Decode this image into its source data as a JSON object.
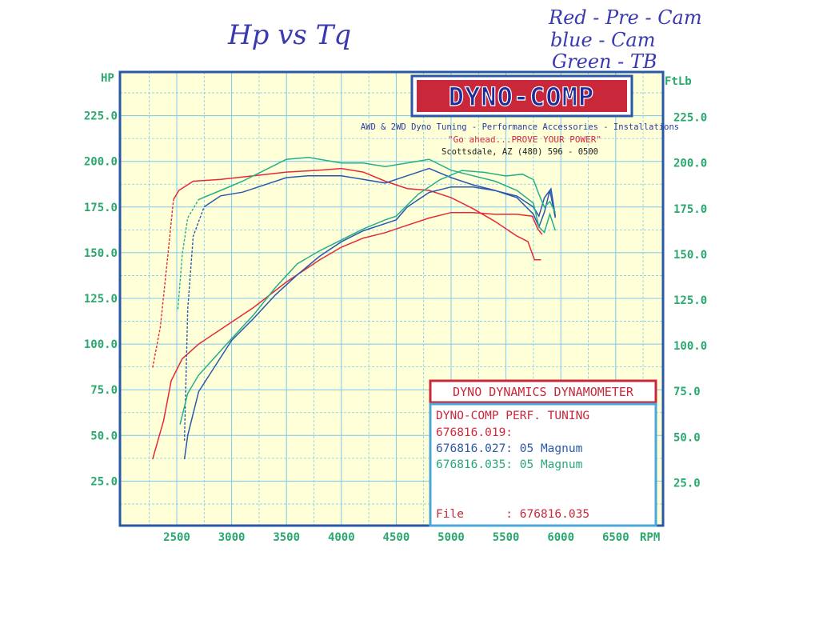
{
  "annotations": {
    "title": "Hp vs Tq",
    "legend_lines": [
      "Red - Pre - Cam",
      "blue - Cam",
      "Green - TB"
    ]
  },
  "logo": {
    "text": "DYNO-COMP",
    "tagline": "AWD & 2WD Dyno Tuning - Performance Accessories - Installations",
    "slogan": "\"Go ahead...PROVE YOUR POWER\"",
    "address": "Scottsdale, AZ (480) 596 - 0500"
  },
  "infobox": {
    "header": "DYNO DYNAMICS DYNAMOMETER",
    "company": "DYNO-COMP PERF. TUNING",
    "runs": [
      {
        "label": "676816.019:",
        "color": "#d8283a"
      },
      {
        "label": "676816.027: 05 Magnum",
        "color": "#2a5aa8"
      },
      {
        "label": "676816.035: 05 Magnum",
        "color": "#27a87a"
      }
    ],
    "file_label": "File      : 676816.035"
  },
  "colors": {
    "red": "#e8283a",
    "blue": "#2a58b0",
    "green": "#22b08a",
    "grid": "#7cc8f0",
    "plot_bg": "#ffffd8",
    "frame": "#2a58a8",
    "tick_text": "#2aa86e"
  },
  "chart_data": {
    "type": "line",
    "xlabel": "RPM",
    "ylabel_left": "HP",
    "ylabel_right": "FtLb",
    "x_ticks": [
      2500,
      3000,
      3500,
      4000,
      4500,
      5000,
      5500,
      6000,
      6500
    ],
    "y_left_ticks": [
      "25.0",
      "50.0",
      "75.0",
      "100.0",
      "125.0",
      "150.0",
      "175.0",
      "200.0",
      "225.0"
    ],
    "y_right_ticks": [
      "25.0",
      "50.0",
      "75.0",
      "100.0",
      "125.0",
      "150.0",
      "175.0",
      "200.0",
      "225.0"
    ],
    "series": [
      {
        "name": "676816.019",
        "color_key": "red",
        "hp": [
          [
            2280,
            37
          ],
          [
            2380,
            58
          ],
          [
            2450,
            80
          ],
          [
            2550,
            92
          ],
          [
            2700,
            100
          ],
          [
            2900,
            108
          ],
          [
            3200,
            120
          ],
          [
            3500,
            134
          ],
          [
            3800,
            146
          ],
          [
            4000,
            153
          ],
          [
            4200,
            158
          ],
          [
            4400,
            161
          ],
          [
            4600,
            165
          ],
          [
            4800,
            169
          ],
          [
            5000,
            172
          ],
          [
            5200,
            172
          ],
          [
            5400,
            171
          ],
          [
            5600,
            171
          ],
          [
            5740,
            170
          ],
          [
            5790,
            163
          ],
          [
            5830,
            160
          ]
        ],
        "torque": [
          [
            2280,
            88
          ],
          [
            2350,
            110
          ],
          [
            2420,
            150
          ],
          [
            2470,
            180
          ],
          [
            2520,
            185
          ],
          [
            2650,
            190
          ],
          [
            2900,
            191
          ],
          [
            3200,
            193
          ],
          [
            3500,
            195
          ],
          [
            3800,
            196
          ],
          [
            4000,
            197
          ],
          [
            4200,
            195
          ],
          [
            4400,
            190
          ],
          [
            4600,
            186
          ],
          [
            4800,
            185
          ],
          [
            5000,
            181
          ],
          [
            5200,
            175
          ],
          [
            5400,
            168
          ],
          [
            5600,
            160
          ],
          [
            5700,
            157
          ],
          [
            5760,
            147
          ],
          [
            5820,
            147
          ]
        ]
      },
      {
        "name": "676816.027: 05 Magnum",
        "color_key": "blue",
        "hp": [
          [
            2570,
            37
          ],
          [
            2600,
            50
          ],
          [
            2700,
            74
          ],
          [
            2850,
            88
          ],
          [
            3000,
            102
          ],
          [
            3200,
            114
          ],
          [
            3400,
            127
          ],
          [
            3600,
            138
          ],
          [
            3800,
            148
          ],
          [
            4000,
            156
          ],
          [
            4200,
            162
          ],
          [
            4400,
            166
          ],
          [
            4500,
            168
          ],
          [
            4600,
            175
          ],
          [
            4800,
            183
          ],
          [
            5000,
            186
          ],
          [
            5200,
            186
          ],
          [
            5400,
            184
          ],
          [
            5600,
            181
          ],
          [
            5750,
            175
          ],
          [
            5800,
            170
          ],
          [
            5850,
            180
          ],
          [
            5910,
            185
          ],
          [
            5950,
            170
          ]
        ],
        "torque": [
          [
            2570,
            48
          ],
          [
            2600,
            120
          ],
          [
            2650,
            160
          ],
          [
            2750,
            176
          ],
          [
            2900,
            182
          ],
          [
            3100,
            184
          ],
          [
            3300,
            188
          ],
          [
            3500,
            192
          ],
          [
            3700,
            193
          ],
          [
            4000,
            193
          ],
          [
            4200,
            191
          ],
          [
            4400,
            189
          ],
          [
            4600,
            193
          ],
          [
            4800,
            197
          ],
          [
            5000,
            192
          ],
          [
            5200,
            188
          ],
          [
            5400,
            185
          ],
          [
            5600,
            181
          ],
          [
            5750,
            172
          ],
          [
            5800,
            165
          ],
          [
            5850,
            173
          ],
          [
            5900,
            185
          ],
          [
            5950,
            170
          ]
        ]
      },
      {
        "name": "676816.035: 05 Magnum",
        "color_key": "green",
        "hp": [
          [
            2530,
            56
          ],
          [
            2600,
            73
          ],
          [
            2700,
            83
          ],
          [
            2850,
            93
          ],
          [
            3000,
            103
          ],
          [
            3200,
            116
          ],
          [
            3400,
            131
          ],
          [
            3600,
            144
          ],
          [
            3800,
            151
          ],
          [
            4000,
            157
          ],
          [
            4200,
            163
          ],
          [
            4400,
            168
          ],
          [
            4500,
            170
          ],
          [
            4700,
            182
          ],
          [
            4900,
            190
          ],
          [
            5100,
            195
          ],
          [
            5300,
            194
          ],
          [
            5500,
            192
          ],
          [
            5650,
            193
          ],
          [
            5750,
            190
          ],
          [
            5800,
            182
          ],
          [
            5850,
            175
          ],
          [
            5900,
            178
          ],
          [
            5950,
            172
          ]
        ],
        "torque": [
          [
            2510,
            120
          ],
          [
            2550,
            150
          ],
          [
            2600,
            170
          ],
          [
            2700,
            180
          ],
          [
            2900,
            185
          ],
          [
            3100,
            190
          ],
          [
            3300,
            196
          ],
          [
            3500,
            202
          ],
          [
            3700,
            203
          ],
          [
            4000,
            200
          ],
          [
            4200,
            200
          ],
          [
            4400,
            198
          ],
          [
            4600,
            200
          ],
          [
            4800,
            202
          ],
          [
            5000,
            196
          ],
          [
            5200,
            193
          ],
          [
            5400,
            190
          ],
          [
            5600,
            185
          ],
          [
            5750,
            178
          ],
          [
            5800,
            165
          ],
          [
            5850,
            162
          ],
          [
            5900,
            172
          ],
          [
            5950,
            163
          ]
        ]
      }
    ]
  }
}
